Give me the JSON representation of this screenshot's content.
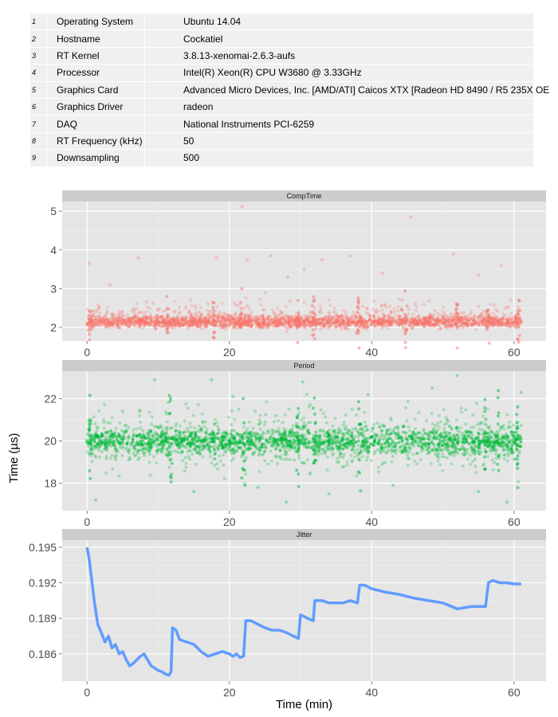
{
  "system_table": {
    "rows": [
      {
        "index": "1",
        "key": "Operating System",
        "value": "Ubuntu 14.04"
      },
      {
        "index": "2",
        "key": "Hostname",
        "value": "Cockatiel"
      },
      {
        "index": "3",
        "key": "RT Kernel",
        "value": "3.8.13-xenomai-2.6.3-aufs"
      },
      {
        "index": "4",
        "key": "Processor",
        "value": "Intel(R) Xeon(R) CPU W3680 @ 3.33GHz"
      },
      {
        "index": "5",
        "key": "Graphics Card",
        "value": "Advanced Micro Devices, Inc. [AMD/ATI] Caicos XTX [Radeon HD 8490 / R5 235X OE"
      },
      {
        "index": "6",
        "key": "Graphics Driver",
        "value": "radeon"
      },
      {
        "index": "7",
        "key": "DAQ",
        "value": "National Instruments PCI-6259"
      },
      {
        "index": "8",
        "key": "RT Frequency (kHz)",
        "value": "50"
      },
      {
        "index": "9",
        "key": "Downsampling",
        "value": "500"
      }
    ]
  },
  "chart_data": {
    "type": "scatter",
    "xlabel": "Time (min)",
    "ylabel": "Time (µs)",
    "xlim": [
      -3.5,
      64.5
    ],
    "x_ticks": [
      0,
      20,
      40,
      60
    ],
    "grid": true,
    "legend": "none",
    "panels": [
      {
        "name": "CompTime",
        "type": "scatter",
        "color": "#F8766D",
        "ylim": [
          1.65,
          5.25
        ],
        "y_ticks": [
          2,
          3,
          4,
          5
        ],
        "band": {
          "center": 2.15,
          "spread": 0.12
        },
        "spikes_x": [
          0.4,
          11.3,
          17.8,
          21.6,
          29.6,
          31.8,
          38.1,
          44.8,
          52.0,
          56.3,
          60.6
        ],
        "outliers": [
          {
            "x": 0.3,
            "y": 3.65
          },
          {
            "x": 3.2,
            "y": 3.1
          },
          {
            "x": 7.2,
            "y": 3.8
          },
          {
            "x": 18.2,
            "y": 3.8
          },
          {
            "x": 21.8,
            "y": 5.12
          },
          {
            "x": 22.5,
            "y": 3.75
          },
          {
            "x": 25.8,
            "y": 3.85
          },
          {
            "x": 28.2,
            "y": 3.3
          },
          {
            "x": 30.5,
            "y": 3.5
          },
          {
            "x": 33.0,
            "y": 3.75
          },
          {
            "x": 37.0,
            "y": 3.85
          },
          {
            "x": 41.5,
            "y": 3.4
          },
          {
            "x": 45.5,
            "y": 4.85
          },
          {
            "x": 51.5,
            "y": 3.9
          },
          {
            "x": 55.0,
            "y": 3.35
          },
          {
            "x": 58.2,
            "y": 3.6
          }
        ]
      },
      {
        "name": "Period",
        "type": "scatter",
        "color": "#00BA38",
        "ylim": [
          16.7,
          23.3
        ],
        "y_ticks": [
          18,
          20,
          22
        ],
        "band": {
          "center": 20.0,
          "spread": 0.45
        },
        "spikes_x": [
          0.4,
          11.7,
          22.0,
          29.6,
          32.0,
          38.3,
          56.0,
          57.8,
          60.4
        ],
        "outliers": [
          {
            "x": 1.2,
            "y": 17.2
          },
          {
            "x": 5.0,
            "y": 21.4
          },
          {
            "x": 9.5,
            "y": 22.9
          },
          {
            "x": 15.0,
            "y": 17.6
          },
          {
            "x": 17.5,
            "y": 22.9
          },
          {
            "x": 20.5,
            "y": 22.1
          },
          {
            "x": 24.0,
            "y": 17.8
          },
          {
            "x": 26.5,
            "y": 21.2
          },
          {
            "x": 28.0,
            "y": 17.1
          },
          {
            "x": 30.3,
            "y": 22.8
          },
          {
            "x": 34.0,
            "y": 17.5
          },
          {
            "x": 39.5,
            "y": 22.2
          },
          {
            "x": 43.0,
            "y": 17.9
          },
          {
            "x": 48.5,
            "y": 22.5
          },
          {
            "x": 52.0,
            "y": 23.1
          },
          {
            "x": 55.0,
            "y": 17.6
          },
          {
            "x": 59.0,
            "y": 17.1
          },
          {
            "x": 61.0,
            "y": 22.3
          }
        ]
      },
      {
        "name": "Jitter",
        "type": "line",
        "color": "#619CFF",
        "ylim": [
          0.1837,
          0.1956
        ],
        "y_ticks": [
          0.186,
          0.189,
          0.192,
          0.195
        ],
        "y_tick_labels": [
          "0.186",
          "0.189",
          "0.192",
          "0.195"
        ],
        "series": [
          {
            "x": [
              0,
              0.3,
              0.6,
              1,
              1.5,
              2,
              2.5,
              3,
              3.5,
              4,
              4.5,
              5,
              5.5,
              6,
              6.5,
              7,
              7.5,
              8,
              8.5,
              9,
              9.5,
              10,
              10.5,
              11,
              11.5,
              11.8,
              12,
              12.5,
              13,
              14,
              15,
              16,
              17,
              18,
              19,
              20,
              20.5,
              21,
              21.5,
              22,
              22.3,
              23,
              24,
              25,
              26,
              27,
              28,
              29,
              29.7,
              30,
              31,
              31.8,
              32,
              33,
              34,
              35,
              36,
              37,
              38,
              38.3,
              39,
              40,
              42,
              44,
              46,
              48,
              50,
              52,
              54,
              56,
              56.4,
              57,
              58,
              59,
              60,
              61
            ],
            "y": [
              0.195,
              0.194,
              0.1925,
              0.1905,
              0.1885,
              0.1878,
              0.187,
              0.1875,
              0.1865,
              0.1868,
              0.186,
              0.1862,
              0.1855,
              0.185,
              0.1852,
              0.1855,
              0.1858,
              0.186,
              0.1855,
              0.185,
              0.1848,
              0.1846,
              0.1845,
              0.1843,
              0.1842,
              0.1845,
              0.1882,
              0.188,
              0.1872,
              0.187,
              0.1868,
              0.1862,
              0.1858,
              0.186,
              0.1862,
              0.186,
              0.1858,
              0.186,
              0.1857,
              0.1858,
              0.1888,
              0.1888,
              0.1885,
              0.1882,
              0.188,
              0.188,
              0.1878,
              0.1875,
              0.1873,
              0.1893,
              0.189,
              0.1888,
              0.1905,
              0.1905,
              0.1903,
              0.1903,
              0.1903,
              0.1905,
              0.1903,
              0.1918,
              0.1918,
              0.1915,
              0.1912,
              0.191,
              0.1907,
              0.1905,
              0.1903,
              0.1898,
              0.19,
              0.19,
              0.192,
              0.1922,
              0.192,
              0.192,
              0.1919,
              0.1919
            ]
          }
        ]
      }
    ]
  }
}
